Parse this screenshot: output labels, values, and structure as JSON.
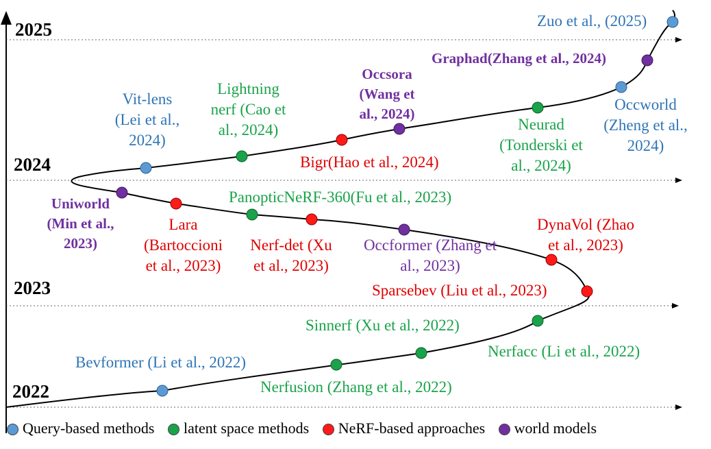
{
  "years": {
    "y2025": "2025",
    "y2024": "2024",
    "y2023": "2023",
    "y2022": "2022"
  },
  "colors": {
    "query": "#4a90c8",
    "latent": "#1aa34a",
    "nerf": "#ff1a1a",
    "world": "#7030a0",
    "query_text": "#2e75b6",
    "latent_text": "#1aa34a",
    "nerf_text": "#e00000",
    "world_text": "#7030a0"
  },
  "legend": {
    "query": "Query-based methods",
    "latent": "latent space methods",
    "nerf": "NeRF-based approaches",
    "world": "world models"
  },
  "labels": {
    "zuo": "Zuo et al., (2025)",
    "graphad": "Graphad(Zhang et al., 2024)",
    "occsora": [
      "Occsora",
      "(Wang et",
      "al., 2024)"
    ],
    "lightning": [
      "Lightning",
      "nerf (Cao et",
      "al., 2024)"
    ],
    "vitlens": [
      "Vit-lens",
      "(Lei et al.,",
      "2024)"
    ],
    "occworld": [
      "Occworld",
      "(Zheng et al.,",
      "2024)"
    ],
    "neurad": [
      "Neurad",
      "(Tonderski et",
      "al., 2024)"
    ],
    "bigr": "Bigr(Hao et al., 2024)",
    "uniworld": [
      "Uniworld",
      "(Min et al.,",
      "2023)"
    ],
    "lara": [
      "Lara",
      "(Bartoccioni",
      "et al., 2023)"
    ],
    "panoptic": "PanopticNeRF-360(Fu et al., 2023)",
    "nerfdet": [
      "Nerf-det (Xu",
      "et al., 2023)"
    ],
    "occformer": [
      "Occformer (Zhang et",
      "al., 2023)"
    ],
    "dynavol": [
      "DynaVol (Zhao",
      "et al., 2023)"
    ],
    "sparsebev": "Sparsebev (Liu et al., 2023)",
    "sinnerf": "Sinnerf (Xu et al., 2022)",
    "nerfacc": "Nerfacc (Li et al., 2022)",
    "bevformer": "Bevformer (Li et al., 2022)",
    "nerfusion": "Nerfusion (Zhang et al., 2022)"
  }
}
